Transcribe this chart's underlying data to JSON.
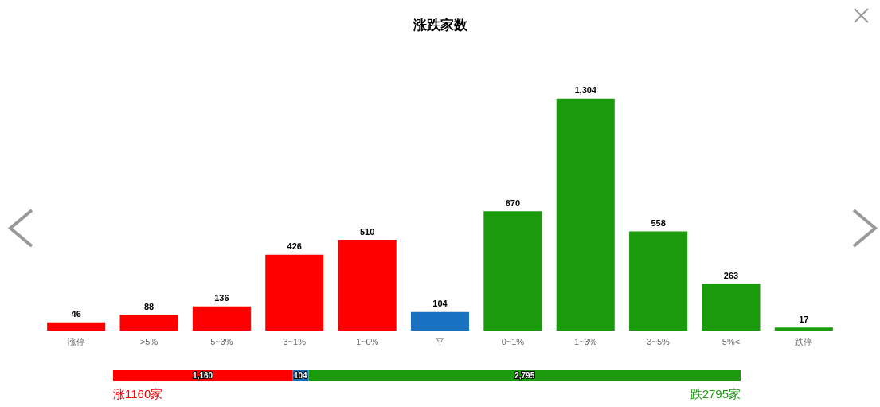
{
  "chart_data": [
    {
      "type": "bar",
      "title": "涨跌家数",
      "categories": [
        "涨停",
        ">5%",
        "5~3%",
        "3~1%",
        "1~0%",
        "平",
        "0~1%",
        "1~3%",
        "3~5%",
        "5%<",
        "跌停"
      ],
      "values": [
        46,
        88,
        136,
        426,
        510,
        104,
        670,
        1304,
        558,
        263,
        17
      ],
      "colors": [
        "#ff0000",
        "#ff0000",
        "#ff0000",
        "#ff0000",
        "#ff0000",
        "#1a73c2",
        "#1a9b0c",
        "#1a9b0c",
        "#1a9b0c",
        "#1a9b0c",
        "#1a9b0c"
      ],
      "value_labels": [
        "46",
        "88",
        "136",
        "426",
        "510",
        "104",
        "670",
        "1,304",
        "558",
        "263",
        "17"
      ]
    },
    {
      "type": "bar",
      "orientation": "horizontal",
      "stacked": true,
      "categories": [
        null
      ],
      "series": [
        {
          "color": "#ff0000",
          "values": [
            1160
          ],
          "value_labels": [
            "1,160"
          ]
        },
        {
          "color": "#1a73c2",
          "values": [
            104
          ],
          "value_labels": [
            "104"
          ]
        },
        {
          "color": "#1a9b0c",
          "values": [
            2795
          ],
          "value_labels": [
            "2,795"
          ]
        }
      ],
      "annotations": [
        "涨1160家",
        "跌2795家"
      ]
    }
  ]
}
